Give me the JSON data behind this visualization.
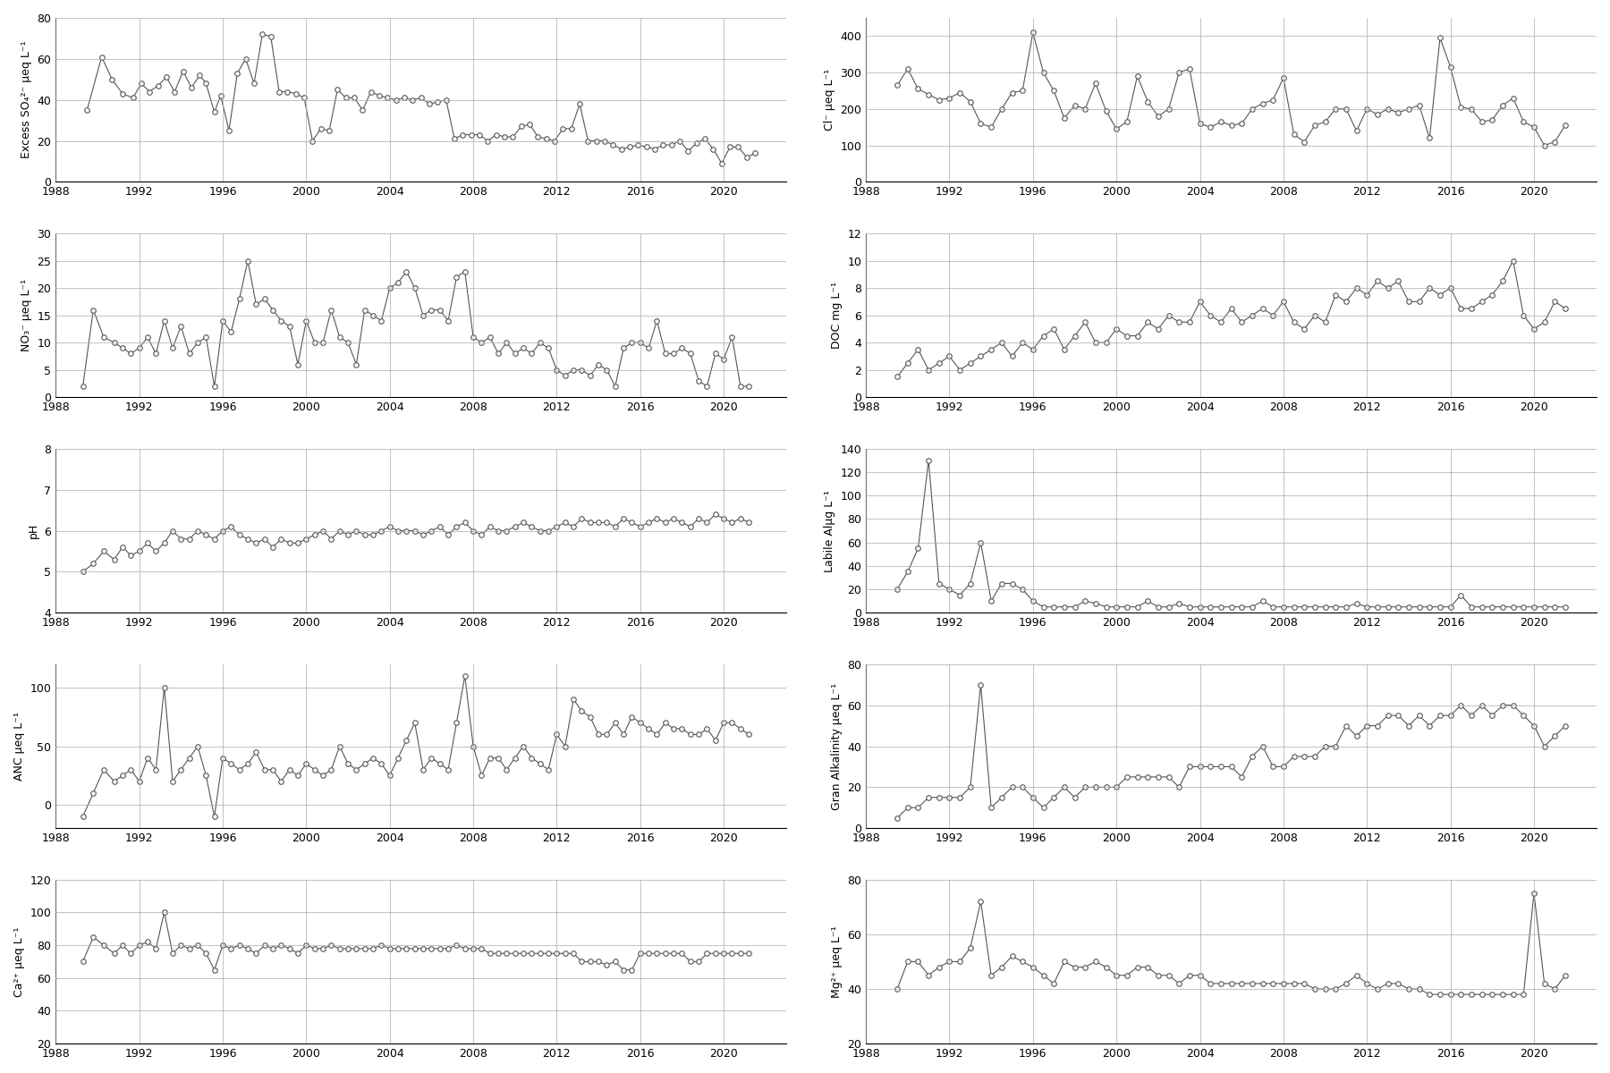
{
  "so4": {
    "ylabel": "Excess SO₄²⁻ μeq L⁻¹",
    "ylim": [
      0,
      80
    ],
    "yticks": [
      0,
      20,
      40,
      60,
      80
    ],
    "x": [
      1989.5,
      1990.2,
      1990.7,
      1991.2,
      1991.7,
      1992.1,
      1992.5,
      1992.9,
      1993.3,
      1993.7,
      1994.1,
      1994.5,
      1994.9,
      1995.2,
      1995.6,
      1995.9,
      1996.3,
      1996.7,
      1997.1,
      1997.5,
      1997.9,
      1998.3,
      1998.7,
      1999.1,
      1999.5,
      1999.9,
      2000.3,
      2000.7,
      2001.1,
      2001.5,
      2001.9,
      2002.3,
      2002.7,
      2003.1,
      2003.5,
      2003.9,
      2004.3,
      2004.7,
      2005.1,
      2005.5,
      2005.9,
      2006.3,
      2006.7,
      2007.1,
      2007.5,
      2007.9,
      2008.3,
      2008.7,
      2009.1,
      2009.5,
      2009.9,
      2010.3,
      2010.7,
      2011.1,
      2011.5,
      2011.9,
      2012.3,
      2012.7,
      2013.1,
      2013.5,
      2013.9,
      2014.3,
      2014.7,
      2015.1,
      2015.5,
      2015.9,
      2016.3,
      2016.7,
      2017.1,
      2017.5,
      2017.9,
      2018.3,
      2018.7,
      2019.1,
      2019.5,
      2019.9,
      2020.3,
      2020.7,
      2021.1,
      2021.5
    ],
    "y": [
      35,
      61,
      50,
      43,
      41,
      48,
      44,
      47,
      51,
      44,
      54,
      46,
      52,
      48,
      34,
      42,
      25,
      53,
      60,
      48,
      72,
      71,
      44,
      44,
      43,
      41,
      20,
      26,
      25,
      45,
      41,
      41,
      35,
      44,
      42,
      41,
      40,
      41,
      40,
      41,
      38,
      39,
      40,
      21,
      23,
      23,
      23,
      20,
      23,
      22,
      22,
      27,
      28,
      22,
      21,
      20,
      26,
      26,
      38,
      20,
      20,
      20,
      18,
      16,
      17,
      18,
      17,
      16,
      18,
      18,
      20,
      15,
      19,
      21,
      16,
      9,
      17,
      17,
      12,
      14
    ]
  },
  "cl": {
    "ylabel": "Cl⁻ μeq L⁻¹",
    "ylim": [
      0,
      450
    ],
    "yticks": [
      0,
      100,
      200,
      300,
      400
    ],
    "x": [
      1989.5,
      1990.0,
      1990.5,
      1991.0,
      1991.5,
      1992.0,
      1992.5,
      1993.0,
      1993.5,
      1994.0,
      1994.5,
      1995.0,
      1995.5,
      1996.0,
      1996.5,
      1997.0,
      1997.5,
      1998.0,
      1998.5,
      1999.0,
      1999.5,
      2000.0,
      2000.5,
      2001.0,
      2001.5,
      2002.0,
      2002.5,
      2003.0,
      2003.5,
      2004.0,
      2004.5,
      2005.0,
      2005.5,
      2006.0,
      2006.5,
      2007.0,
      2007.5,
      2008.0,
      2008.5,
      2009.0,
      2009.5,
      2010.0,
      2010.5,
      2011.0,
      2011.5,
      2012.0,
      2012.5,
      2013.0,
      2013.5,
      2014.0,
      2014.5,
      2015.0,
      2015.5,
      2016.0,
      2016.5,
      2017.0,
      2017.5,
      2018.0,
      2018.5,
      2019.0,
      2019.5,
      2020.0,
      2020.5,
      2021.0,
      2021.5
    ],
    "y": [
      265,
      310,
      255,
      240,
      225,
      230,
      245,
      220,
      160,
      150,
      200,
      245,
      250,
      410,
      300,
      250,
      175,
      210,
      200,
      270,
      195,
      145,
      165,
      290,
      220,
      180,
      200,
      300,
      310,
      160,
      150,
      165,
      155,
      160,
      200,
      215,
      225,
      285,
      130,
      110,
      155,
      165,
      200,
      200,
      140,
      200,
      185,
      200,
      190,
      200,
      210,
      120,
      395,
      315,
      205,
      200,
      165,
      170,
      210,
      230,
      165,
      150,
      100,
      110,
      155
    ]
  },
  "no3": {
    "ylabel": "NO₃⁻ μeq L⁻¹",
    "ylim": [
      0,
      30
    ],
    "yticks": [
      0,
      5,
      10,
      15,
      20,
      25,
      30
    ],
    "x": [
      1989.3,
      1989.8,
      1990.3,
      1990.8,
      1991.2,
      1991.6,
      1992.0,
      1992.4,
      1992.8,
      1993.2,
      1993.6,
      1994.0,
      1994.4,
      1994.8,
      1995.2,
      1995.6,
      1996.0,
      1996.4,
      1996.8,
      1997.2,
      1997.6,
      1998.0,
      1998.4,
      1998.8,
      1999.2,
      1999.6,
      2000.0,
      2000.4,
      2000.8,
      2001.2,
      2001.6,
      2002.0,
      2002.4,
      2002.8,
      2003.2,
      2003.6,
      2004.0,
      2004.4,
      2004.8,
      2005.2,
      2005.6,
      2006.0,
      2006.4,
      2006.8,
      2007.2,
      2007.6,
      2008.0,
      2008.4,
      2008.8,
      2009.2,
      2009.6,
      2010.0,
      2010.4,
      2010.8,
      2011.2,
      2011.6,
      2012.0,
      2012.4,
      2012.8,
      2013.2,
      2013.6,
      2014.0,
      2014.4,
      2014.8,
      2015.2,
      2015.6,
      2016.0,
      2016.4,
      2016.8,
      2017.2,
      2017.6,
      2018.0,
      2018.4,
      2018.8,
      2019.2,
      2019.6,
      2020.0,
      2020.4,
      2020.8,
      2021.2
    ],
    "y": [
      2,
      16,
      11,
      10,
      9,
      8,
      9,
      11,
      8,
      14,
      9,
      13,
      8,
      10,
      11,
      2,
      14,
      12,
      18,
      25,
      17,
      18,
      16,
      14,
      13,
      6,
      14,
      10,
      10,
      16,
      11,
      10,
      6,
      16,
      15,
      14,
      20,
      21,
      23,
      20,
      15,
      16,
      16,
      14,
      22,
      23,
      11,
      10,
      11,
      8,
      10,
      8,
      9,
      8,
      10,
      9,
      5,
      4,
      5,
      5,
      4,
      6,
      5,
      2,
      9,
      10,
      10,
      9,
      14,
      8,
      8,
      9,
      8,
      3,
      2,
      8,
      7,
      11,
      2,
      2
    ]
  },
  "doc": {
    "ylabel": "DOC mg L⁻¹",
    "ylim": [
      0,
      12
    ],
    "yticks": [
      0,
      2,
      4,
      6,
      8,
      10,
      12
    ],
    "x": [
      1989.5,
      1990.0,
      1990.5,
      1991.0,
      1991.5,
      1992.0,
      1992.5,
      1993.0,
      1993.5,
      1994.0,
      1994.5,
      1995.0,
      1995.5,
      1996.0,
      1996.5,
      1997.0,
      1997.5,
      1998.0,
      1998.5,
      1999.0,
      1999.5,
      2000.0,
      2000.5,
      2001.0,
      2001.5,
      2002.0,
      2002.5,
      2003.0,
      2003.5,
      2004.0,
      2004.5,
      2005.0,
      2005.5,
      2006.0,
      2006.5,
      2007.0,
      2007.5,
      2008.0,
      2008.5,
      2009.0,
      2009.5,
      2010.0,
      2010.5,
      2011.0,
      2011.5,
      2012.0,
      2012.5,
      2013.0,
      2013.5,
      2014.0,
      2014.5,
      2015.0,
      2015.5,
      2016.0,
      2016.5,
      2017.0,
      2017.5,
      2018.0,
      2018.5,
      2019.0,
      2019.5,
      2020.0,
      2020.5,
      2021.0,
      2021.5
    ],
    "y": [
      1.5,
      2.5,
      3.5,
      2.0,
      2.5,
      3.0,
      2.0,
      2.5,
      3.0,
      3.5,
      4.0,
      3.0,
      4.0,
      3.5,
      4.5,
      5.0,
      3.5,
      4.5,
      5.5,
      4.0,
      4.0,
      5.0,
      4.5,
      4.5,
      5.5,
      5.0,
      6.0,
      5.5,
      5.5,
      7.0,
      6.0,
      5.5,
      6.5,
      5.5,
      6.0,
      6.5,
      6.0,
      7.0,
      5.5,
      5.0,
      6.0,
      5.5,
      7.5,
      7.0,
      8.0,
      7.5,
      8.5,
      8.0,
      8.5,
      7.0,
      7.0,
      8.0,
      7.5,
      8.0,
      6.5,
      6.5,
      7.0,
      7.5,
      8.5,
      10.0,
      6.0,
      5.0,
      5.5,
      7.0,
      6.5
    ]
  },
  "ph": {
    "ylabel": "pH",
    "ylim": [
      4,
      8
    ],
    "yticks": [
      4,
      5,
      6,
      7,
      8
    ],
    "x": [
      1989.3,
      1989.8,
      1990.3,
      1990.8,
      1991.2,
      1991.6,
      1992.0,
      1992.4,
      1992.8,
      1993.2,
      1993.6,
      1994.0,
      1994.4,
      1994.8,
      1995.2,
      1995.6,
      1996.0,
      1996.4,
      1996.8,
      1997.2,
      1997.6,
      1998.0,
      1998.4,
      1998.8,
      1999.2,
      1999.6,
      2000.0,
      2000.4,
      2000.8,
      2001.2,
      2001.6,
      2002.0,
      2002.4,
      2002.8,
      2003.2,
      2003.6,
      2004.0,
      2004.4,
      2004.8,
      2005.2,
      2005.6,
      2006.0,
      2006.4,
      2006.8,
      2007.2,
      2007.6,
      2008.0,
      2008.4,
      2008.8,
      2009.2,
      2009.6,
      2010.0,
      2010.4,
      2010.8,
      2011.2,
      2011.6,
      2012.0,
      2012.4,
      2012.8,
      2013.2,
      2013.6,
      2014.0,
      2014.4,
      2014.8,
      2015.2,
      2015.6,
      2016.0,
      2016.4,
      2016.8,
      2017.2,
      2017.6,
      2018.0,
      2018.4,
      2018.8,
      2019.2,
      2019.6,
      2020.0,
      2020.4,
      2020.8,
      2021.2
    ],
    "y": [
      5.0,
      5.2,
      5.5,
      5.3,
      5.6,
      5.4,
      5.5,
      5.7,
      5.5,
      5.7,
      6.0,
      5.8,
      5.8,
      6.0,
      5.9,
      5.8,
      6.0,
      6.1,
      5.9,
      5.8,
      5.7,
      5.8,
      5.6,
      5.8,
      5.7,
      5.7,
      5.8,
      5.9,
      6.0,
      5.8,
      6.0,
      5.9,
      6.0,
      5.9,
      5.9,
      6.0,
      6.1,
      6.0,
      6.0,
      6.0,
      5.9,
      6.0,
      6.1,
      5.9,
      6.1,
      6.2,
      6.0,
      5.9,
      6.1,
      6.0,
      6.0,
      6.1,
      6.2,
      6.1,
      6.0,
      6.0,
      6.1,
      6.2,
      6.1,
      6.3,
      6.2,
      6.2,
      6.2,
      6.1,
      6.3,
      6.2,
      6.1,
      6.2,
      6.3,
      6.2,
      6.3,
      6.2,
      6.1,
      6.3,
      6.2,
      6.4,
      6.3,
      6.2,
      6.3,
      6.2
    ]
  },
  "labile_al": {
    "ylabel": "Labile Alμg L⁻¹",
    "ylim": [
      0,
      140
    ],
    "yticks": [
      0,
      20,
      40,
      60,
      80,
      100,
      120,
      140
    ],
    "x": [
      1989.5,
      1990.0,
      1990.5,
      1991.0,
      1991.5,
      1992.0,
      1992.5,
      1993.0,
      1993.5,
      1994.0,
      1994.5,
      1995.0,
      1995.5,
      1996.0,
      1996.5,
      1997.0,
      1997.5,
      1998.0,
      1998.5,
      1999.0,
      1999.5,
      2000.0,
      2000.5,
      2001.0,
      2001.5,
      2002.0,
      2002.5,
      2003.0,
      2003.5,
      2004.0,
      2004.5,
      2005.0,
      2005.5,
      2006.0,
      2006.5,
      2007.0,
      2007.5,
      2008.0,
      2008.5,
      2009.0,
      2009.5,
      2010.0,
      2010.5,
      2011.0,
      2011.5,
      2012.0,
      2012.5,
      2013.0,
      2013.5,
      2014.0,
      2014.5,
      2015.0,
      2015.5,
      2016.0,
      2016.5,
      2017.0,
      2017.5,
      2018.0,
      2018.5,
      2019.0,
      2019.5,
      2020.0,
      2020.5,
      2021.0,
      2021.5
    ],
    "y": [
      20,
      35,
      55,
      130,
      25,
      20,
      15,
      25,
      60,
      10,
      25,
      25,
      20,
      10,
      5,
      5,
      5,
      5,
      10,
      8,
      5,
      5,
      5,
      5,
      10,
      5,
      5,
      8,
      5,
      5,
      5,
      5,
      5,
      5,
      5,
      10,
      5,
      5,
      5,
      5,
      5,
      5,
      5,
      5,
      8,
      5,
      5,
      5,
      5,
      5,
      5,
      5,
      5,
      5,
      15,
      5,
      5,
      5,
      5,
      5,
      5,
      5,
      5,
      5,
      5
    ]
  },
  "anc": {
    "ylabel": "ANC μeq L⁻¹",
    "ylim": [
      -20,
      120
    ],
    "yticks": [
      0,
      50,
      100
    ],
    "x": [
      1989.3,
      1989.8,
      1990.3,
      1990.8,
      1991.2,
      1991.6,
      1992.0,
      1992.4,
      1992.8,
      1993.2,
      1993.6,
      1994.0,
      1994.4,
      1994.8,
      1995.2,
      1995.6,
      1996.0,
      1996.4,
      1996.8,
      1997.2,
      1997.6,
      1998.0,
      1998.4,
      1998.8,
      1999.2,
      1999.6,
      2000.0,
      2000.4,
      2000.8,
      2001.2,
      2001.6,
      2002.0,
      2002.4,
      2002.8,
      2003.2,
      2003.6,
      2004.0,
      2004.4,
      2004.8,
      2005.2,
      2005.6,
      2006.0,
      2006.4,
      2006.8,
      2007.2,
      2007.6,
      2008.0,
      2008.4,
      2008.8,
      2009.2,
      2009.6,
      2010.0,
      2010.4,
      2010.8,
      2011.2,
      2011.6,
      2012.0,
      2012.4,
      2012.8,
      2013.2,
      2013.6,
      2014.0,
      2014.4,
      2014.8,
      2015.2,
      2015.6,
      2016.0,
      2016.4,
      2016.8,
      2017.2,
      2017.6,
      2018.0,
      2018.4,
      2018.8,
      2019.2,
      2019.6,
      2020.0,
      2020.4,
      2020.8,
      2021.2
    ],
    "y": [
      -10,
      10,
      30,
      20,
      25,
      30,
      20,
      40,
      30,
      100,
      20,
      30,
      40,
      50,
      25,
      -10,
      40,
      35,
      30,
      35,
      45,
      30,
      30,
      20,
      30,
      25,
      35,
      30,
      25,
      30,
      50,
      35,
      30,
      35,
      40,
      35,
      25,
      40,
      55,
      70,
      30,
      40,
      35,
      30,
      70,
      110,
      50,
      25,
      40,
      40,
      30,
      40,
      50,
      40,
      35,
      30,
      60,
      50,
      90,
      80,
      75,
      60,
      60,
      70,
      60,
      75,
      70,
      65,
      60,
      70,
      65,
      65,
      60,
      60,
      65,
      55,
      70,
      70,
      65,
      60
    ]
  },
  "gran_alk": {
    "ylabel": "Gran Alkalinity μeq L⁻¹",
    "ylim": [
      0,
      80
    ],
    "yticks": [
      0,
      20,
      40,
      60,
      80
    ],
    "x": [
      1989.5,
      1990.0,
      1990.5,
      1991.0,
      1991.5,
      1992.0,
      1992.5,
      1993.0,
      1993.5,
      1994.0,
      1994.5,
      1995.0,
      1995.5,
      1996.0,
      1996.5,
      1997.0,
      1997.5,
      1998.0,
      1998.5,
      1999.0,
      1999.5,
      2000.0,
      2000.5,
      2001.0,
      2001.5,
      2002.0,
      2002.5,
      2003.0,
      2003.5,
      2004.0,
      2004.5,
      2005.0,
      2005.5,
      2006.0,
      2006.5,
      2007.0,
      2007.5,
      2008.0,
      2008.5,
      2009.0,
      2009.5,
      2010.0,
      2010.5,
      2011.0,
      2011.5,
      2012.0,
      2012.5,
      2013.0,
      2013.5,
      2014.0,
      2014.5,
      2015.0,
      2015.5,
      2016.0,
      2016.5,
      2017.0,
      2017.5,
      2018.0,
      2018.5,
      2019.0,
      2019.5,
      2020.0,
      2020.5,
      2021.0,
      2021.5
    ],
    "y": [
      5,
      10,
      10,
      15,
      15,
      15,
      15,
      20,
      70,
      10,
      15,
      20,
      20,
      15,
      10,
      15,
      20,
      15,
      20,
      20,
      20,
      20,
      25,
      25,
      25,
      25,
      25,
      20,
      30,
      30,
      30,
      30,
      30,
      25,
      35,
      40,
      30,
      30,
      35,
      35,
      35,
      40,
      40,
      50,
      45,
      50,
      50,
      55,
      55,
      50,
      55,
      50,
      55,
      55,
      60,
      55,
      60,
      55,
      60,
      60,
      55,
      50,
      40,
      45,
      50
    ]
  },
  "ca": {
    "ylabel": "Ca²⁺ μeq L⁻¹",
    "ylim": [
      20,
      120
    ],
    "yticks": [
      20,
      40,
      60,
      80,
      100,
      120
    ],
    "x": [
      1989.3,
      1989.8,
      1990.3,
      1990.8,
      1991.2,
      1991.6,
      1992.0,
      1992.4,
      1992.8,
      1993.2,
      1993.6,
      1994.0,
      1994.4,
      1994.8,
      1995.2,
      1995.6,
      1996.0,
      1996.4,
      1996.8,
      1997.2,
      1997.6,
      1998.0,
      1998.4,
      1998.8,
      1999.2,
      1999.6,
      2000.0,
      2000.4,
      2000.8,
      2001.2,
      2001.6,
      2002.0,
      2002.4,
      2002.8,
      2003.2,
      2003.6,
      2004.0,
      2004.4,
      2004.8,
      2005.2,
      2005.6,
      2006.0,
      2006.4,
      2006.8,
      2007.2,
      2007.6,
      2008.0,
      2008.4,
      2008.8,
      2009.2,
      2009.6,
      2010.0,
      2010.4,
      2010.8,
      2011.2,
      2011.6,
      2012.0,
      2012.4,
      2012.8,
      2013.2,
      2013.6,
      2014.0,
      2014.4,
      2014.8,
      2015.2,
      2015.6,
      2016.0,
      2016.4,
      2016.8,
      2017.2,
      2017.6,
      2018.0,
      2018.4,
      2018.8,
      2019.2,
      2019.6,
      2020.0,
      2020.4,
      2020.8,
      2021.2
    ],
    "y": [
      70,
      85,
      80,
      75,
      80,
      75,
      80,
      82,
      78,
      100,
      75,
      80,
      78,
      80,
      75,
      65,
      80,
      78,
      80,
      78,
      75,
      80,
      78,
      80,
      78,
      75,
      80,
      78,
      78,
      80,
      78,
      78,
      78,
      78,
      78,
      80,
      78,
      78,
      78,
      78,
      78,
      78,
      78,
      78,
      80,
      78,
      78,
      78,
      75,
      75,
      75,
      75,
      75,
      75,
      75,
      75,
      75,
      75,
      75,
      70,
      70,
      70,
      68,
      70,
      65,
      65,
      75,
      75,
      75,
      75,
      75,
      75,
      70,
      70,
      75,
      75,
      75,
      75,
      75,
      75
    ]
  },
  "mg": {
    "ylabel": "Mg²⁺ μeq L⁻¹",
    "ylim": [
      20,
      80
    ],
    "yticks": [
      20,
      40,
      60,
      80
    ],
    "x": [
      1989.5,
      1990.0,
      1990.5,
      1991.0,
      1991.5,
      1992.0,
      1992.5,
      1993.0,
      1993.5,
      1994.0,
      1994.5,
      1995.0,
      1995.5,
      1996.0,
      1996.5,
      1997.0,
      1997.5,
      1998.0,
      1998.5,
      1999.0,
      1999.5,
      2000.0,
      2000.5,
      2001.0,
      2001.5,
      2002.0,
      2002.5,
      2003.0,
      2003.5,
      2004.0,
      2004.5,
      2005.0,
      2005.5,
      2006.0,
      2006.5,
      2007.0,
      2007.5,
      2008.0,
      2008.5,
      2009.0,
      2009.5,
      2010.0,
      2010.5,
      2011.0,
      2011.5,
      2012.0,
      2012.5,
      2013.0,
      2013.5,
      2014.0,
      2014.5,
      2015.0,
      2015.5,
      2016.0,
      2016.5,
      2017.0,
      2017.5,
      2018.0,
      2018.5,
      2019.0,
      2019.5,
      2020.0,
      2020.5,
      2021.0,
      2021.5
    ],
    "y": [
      40,
      50,
      50,
      45,
      48,
      50,
      50,
      55,
      72,
      45,
      48,
      52,
      50,
      48,
      45,
      42,
      50,
      48,
      48,
      50,
      48,
      45,
      45,
      48,
      48,
      45,
      45,
      42,
      45,
      45,
      42,
      42,
      42,
      42,
      42,
      42,
      42,
      42,
      42,
      42,
      40,
      40,
      40,
      42,
      45,
      42,
      40,
      42,
      42,
      40,
      40,
      38,
      38,
      38,
      38,
      38,
      38,
      38,
      38,
      38,
      38,
      75,
      42,
      40,
      45
    ]
  },
  "xlim": [
    1988,
    2023
  ],
  "xticks": [
    1988,
    1992,
    1996,
    2000,
    2004,
    2008,
    2012,
    2016,
    2020
  ],
  "line_color": "#555555",
  "marker": "o",
  "markersize": 4,
  "markerfacecolor": "white",
  "markeredgecolor": "#555555",
  "grid_color": "#aaaaaa",
  "bg_color": "#ffffff"
}
